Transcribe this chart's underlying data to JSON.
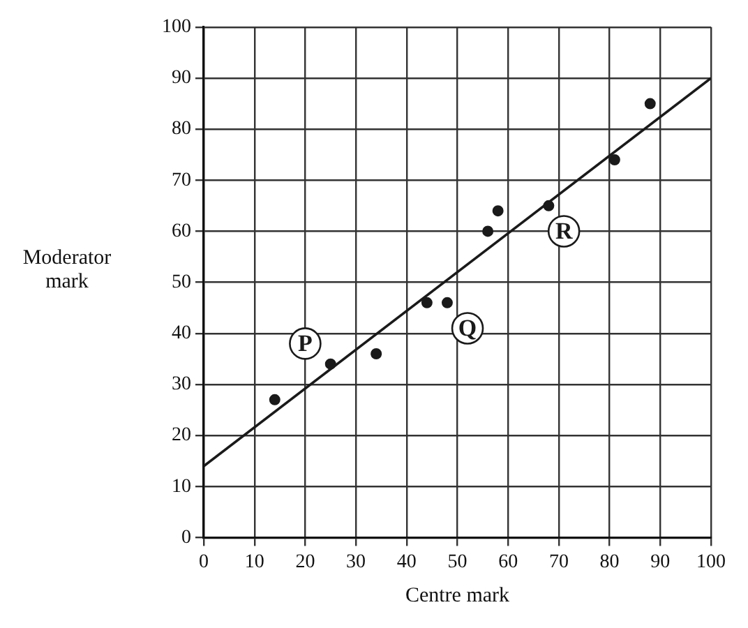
{
  "chart_data": {
    "type": "scatter",
    "xlabel": "Centre mark",
    "ylabel": "Moderator mark",
    "xlim": [
      0,
      100
    ],
    "ylim": [
      0,
      100
    ],
    "xticks": [
      0,
      10,
      20,
      30,
      40,
      50,
      60,
      70,
      80,
      90,
      100
    ],
    "yticks": [
      0,
      10,
      20,
      30,
      40,
      50,
      60,
      70,
      80,
      90,
      100
    ],
    "grid": true,
    "legend": false,
    "marker": "circle",
    "series": [
      {
        "color": "#1a1a1a",
        "x": [
          14,
          25,
          34,
          44,
          48,
          56,
          58,
          68,
          81,
          88
        ],
        "values": [
          27,
          34,
          36,
          46,
          46,
          60,
          64,
          65,
          74,
          85
        ]
      },
      {
        "type": "line",
        "color": "#1a1a1a",
        "x": [
          0,
          100
        ],
        "values": [
          14,
          90
        ],
        "line_style": "solid",
        "marker": "none"
      }
    ],
    "annotations": [
      {
        "text": "P",
        "x": 20,
        "y": 38
      },
      {
        "text": "Q",
        "x": 52,
        "y": 41
      },
      {
        "text": "R",
        "x": 71,
        "y": 60
      }
    ]
  }
}
